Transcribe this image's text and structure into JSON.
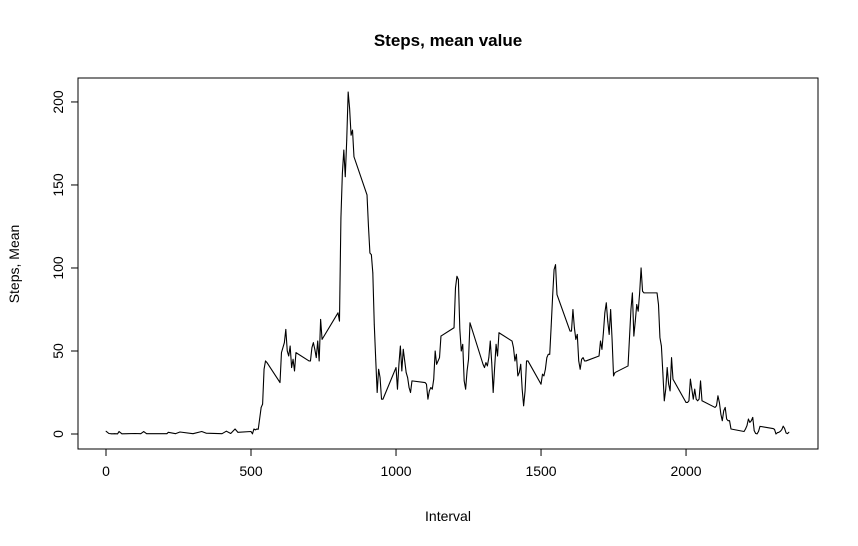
{
  "chart_data": {
    "type": "line",
    "title": "Steps, mean value",
    "xlabel": "Interval",
    "ylabel": "Steps, Mean",
    "xlim": [
      0,
      2355
    ],
    "ylim": [
      0,
      206
    ],
    "xticks": [
      0,
      500,
      1000,
      1500,
      2000
    ],
    "yticks": [
      0,
      50,
      100,
      150,
      200
    ],
    "xtick_labels": [
      "0",
      "500",
      "1000",
      "1500",
      "2000"
    ],
    "ytick_labels": [
      "0",
      "50",
      "100",
      "150",
      "200"
    ],
    "grid": false,
    "series": [
      {
        "color": "#000000",
        "points": [
          [
            0,
            1.7
          ],
          [
            10,
            0.3
          ],
          [
            20,
            0.1
          ],
          [
            30,
            0.2
          ],
          [
            40,
            0.1
          ],
          [
            45,
            1.5
          ],
          [
            55,
            0.1
          ],
          [
            100,
            0.3
          ],
          [
            120,
            0.2
          ],
          [
            130,
            1.5
          ],
          [
            140,
            0.2
          ],
          [
            210,
            0.2
          ],
          [
            215,
            1.0
          ],
          [
            240,
            0.2
          ],
          [
            255,
            1.2
          ],
          [
            300,
            0.2
          ],
          [
            330,
            1.5
          ],
          [
            345,
            0.5
          ],
          [
            400,
            0.2
          ],
          [
            415,
            1.7
          ],
          [
            430,
            0.3
          ],
          [
            445,
            3.0
          ],
          [
            455,
            1.0
          ],
          [
            500,
            1.5
          ],
          [
            505,
            0.1
          ],
          [
            510,
            3.0
          ],
          [
            515,
            2.5
          ],
          [
            520,
            3.0
          ],
          [
            525,
            2.9
          ],
          [
            535,
            16
          ],
          [
            540,
            18
          ],
          [
            545,
            39
          ],
          [
            550,
            44
          ],
          [
            555,
            43
          ],
          [
            600,
            31
          ],
          [
            605,
            49
          ],
          [
            615,
            55
          ],
          [
            620,
            63
          ],
          [
            625,
            50
          ],
          [
            630,
            47
          ],
          [
            635,
            53
          ],
          [
            640,
            40
          ],
          [
            645,
            45
          ],
          [
            650,
            38
          ],
          [
            655,
            49
          ],
          [
            700,
            44
          ],
          [
            705,
            44
          ],
          [
            710,
            52
          ],
          [
            715,
            55
          ],
          [
            720,
            51
          ],
          [
            725,
            46
          ],
          [
            730,
            56
          ],
          [
            735,
            44
          ],
          [
            740,
            69
          ],
          [
            745,
            57
          ],
          [
            800,
            73
          ],
          [
            805,
            68
          ],
          [
            810,
            130
          ],
          [
            815,
            157
          ],
          [
            820,
            171
          ],
          [
            825,
            155
          ],
          [
            830,
            177
          ],
          [
            835,
            206
          ],
          [
            840,
            196
          ],
          [
            845,
            180
          ],
          [
            850,
            183
          ],
          [
            855,
            167
          ],
          [
            900,
            144
          ],
          [
            905,
            125
          ],
          [
            910,
            109
          ],
          [
            915,
            108
          ],
          [
            920,
            97
          ],
          [
            925,
            66
          ],
          [
            930,
            45
          ],
          [
            935,
            25
          ],
          [
            940,
            39
          ],
          [
            945,
            34
          ],
          [
            950,
            21
          ],
          [
            955,
            21
          ],
          [
            1000,
            40
          ],
          [
            1005,
            27
          ],
          [
            1010,
            42
          ],
          [
            1015,
            53
          ],
          [
            1020,
            38
          ],
          [
            1025,
            51
          ],
          [
            1030,
            44
          ],
          [
            1035,
            37
          ],
          [
            1040,
            34
          ],
          [
            1045,
            28
          ],
          [
            1050,
            25
          ],
          [
            1055,
            32
          ],
          [
            1100,
            31
          ],
          [
            1105,
            30
          ],
          [
            1110,
            21
          ],
          [
            1115,
            26
          ],
          [
            1120,
            28
          ],
          [
            1125,
            27
          ],
          [
            1130,
            33
          ],
          [
            1135,
            50
          ],
          [
            1140,
            42
          ],
          [
            1145,
            44
          ],
          [
            1150,
            46
          ],
          [
            1155,
            59
          ],
          [
            1200,
            64
          ],
          [
            1205,
            88
          ],
          [
            1210,
            95
          ],
          [
            1215,
            93
          ],
          [
            1220,
            63
          ],
          [
            1225,
            50
          ],
          [
            1230,
            54
          ],
          [
            1235,
            32
          ],
          [
            1240,
            27
          ],
          [
            1245,
            38
          ],
          [
            1250,
            45
          ],
          [
            1255,
            67
          ],
          [
            1300,
            42
          ],
          [
            1305,
            40
          ],
          [
            1310,
            43
          ],
          [
            1315,
            41
          ],
          [
            1320,
            46
          ],
          [
            1325,
            56
          ],
          [
            1330,
            43
          ],
          [
            1335,
            25
          ],
          [
            1340,
            40
          ],
          [
            1345,
            54
          ],
          [
            1350,
            47
          ],
          [
            1355,
            61
          ],
          [
            1400,
            56
          ],
          [
            1405,
            52
          ],
          [
            1410,
            44
          ],
          [
            1415,
            48
          ],
          [
            1420,
            35
          ],
          [
            1425,
            37
          ],
          [
            1430,
            42
          ],
          [
            1435,
            27
          ],
          [
            1440,
            17
          ],
          [
            1445,
            26
          ],
          [
            1450,
            44
          ],
          [
            1455,
            44
          ],
          [
            1500,
            30
          ],
          [
            1505,
            36
          ],
          [
            1510,
            35
          ],
          [
            1515,
            39
          ],
          [
            1520,
            46
          ],
          [
            1525,
            48
          ],
          [
            1530,
            48
          ],
          [
            1535,
            65
          ],
          [
            1540,
            83
          ],
          [
            1545,
            99
          ],
          [
            1550,
            102
          ],
          [
            1555,
            84
          ],
          [
            1600,
            62
          ],
          [
            1605,
            62
          ],
          [
            1610,
            75
          ],
          [
            1615,
            64
          ],
          [
            1620,
            57
          ],
          [
            1625,
            60
          ],
          [
            1630,
            44
          ],
          [
            1635,
            39
          ],
          [
            1640,
            45
          ],
          [
            1645,
            46
          ],
          [
            1650,
            44
          ],
          [
            1655,
            44
          ],
          [
            1700,
            47
          ],
          [
            1705,
            56
          ],
          [
            1710,
            51
          ],
          [
            1715,
            61
          ],
          [
            1720,
            73
          ],
          [
            1725,
            79
          ],
          [
            1730,
            68
          ],
          [
            1735,
            60
          ],
          [
            1740,
            75
          ],
          [
            1745,
            57
          ],
          [
            1750,
            35
          ],
          [
            1755,
            37
          ],
          [
            1800,
            41
          ],
          [
            1805,
            58
          ],
          [
            1810,
            75
          ],
          [
            1815,
            85
          ],
          [
            1820,
            59
          ],
          [
            1825,
            68
          ],
          [
            1830,
            78
          ],
          [
            1835,
            74
          ],
          [
            1840,
            85
          ],
          [
            1845,
            100
          ],
          [
            1850,
            86
          ],
          [
            1855,
            85
          ],
          [
            1900,
            85
          ],
          [
            1905,
            78
          ],
          [
            1910,
            58
          ],
          [
            1915,
            53
          ],
          [
            1920,
            37
          ],
          [
            1925,
            20
          ],
          [
            1930,
            27
          ],
          [
            1935,
            40
          ],
          [
            1940,
            30
          ],
          [
            1945,
            26
          ],
          [
            1950,
            46
          ],
          [
            1955,
            33
          ],
          [
            2000,
            19
          ],
          [
            2005,
            19
          ],
          [
            2010,
            20
          ],
          [
            2015,
            33
          ],
          [
            2020,
            27
          ],
          [
            2025,
            21
          ],
          [
            2030,
            27
          ],
          [
            2035,
            21
          ],
          [
            2040,
            20
          ],
          [
            2045,
            21
          ],
          [
            2050,
            32
          ],
          [
            2055,
            20
          ],
          [
            2100,
            16
          ],
          [
            2105,
            17
          ],
          [
            2110,
            23
          ],
          [
            2115,
            19
          ],
          [
            2120,
            12
          ],
          [
            2125,
            8
          ],
          [
            2130,
            14
          ],
          [
            2135,
            16
          ],
          [
            2140,
            9
          ],
          [
            2145,
            8
          ],
          [
            2150,
            8
          ],
          [
            2155,
            3
          ],
          [
            2200,
            1.5
          ],
          [
            2205,
            3
          ],
          [
            2210,
            5
          ],
          [
            2215,
            9
          ],
          [
            2220,
            7
          ],
          [
            2225,
            8
          ],
          [
            2230,
            10
          ],
          [
            2235,
            2
          ],
          [
            2240,
            0.3
          ],
          [
            2245,
            0.1
          ],
          [
            2250,
            1.6
          ],
          [
            2255,
            4.6
          ],
          [
            2300,
            3.3
          ],
          [
            2305,
            2.8
          ],
          [
            2310,
            0
          ],
          [
            2315,
            0.8
          ],
          [
            2320,
            1.0
          ],
          [
            2325,
            1.6
          ],
          [
            2330,
            2.6
          ],
          [
            2335,
            4.7
          ],
          [
            2340,
            3.3
          ],
          [
            2345,
            0.6
          ],
          [
            2350,
            0.2
          ],
          [
            2355,
            1.1
          ]
        ]
      }
    ]
  }
}
